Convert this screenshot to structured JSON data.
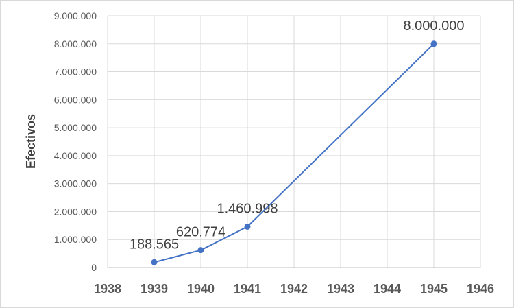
{
  "chart_data": {
    "type": "line",
    "title": "",
    "xlabel": "",
    "ylabel": "Efectivos",
    "xlim": [
      1938,
      1946
    ],
    "ylim": [
      0,
      9000000
    ],
    "x_ticks": [
      "1938",
      "1939",
      "1940",
      "1941",
      "1942",
      "1943",
      "1944",
      "1945",
      "1946"
    ],
    "y_ticks": [
      "0",
      "1.000.000",
      "2.000.000",
      "3.000.000",
      "4.000.000",
      "5.000.000",
      "6.000.000",
      "7.000.000",
      "8.000.000",
      "9.000.000"
    ],
    "grid": true,
    "legend": "none",
    "series": [
      {
        "color": "#4472c4",
        "points": [
          {
            "x": 1939,
            "y": 188565,
            "label": "188.565"
          },
          {
            "x": 1940,
            "y": 620774,
            "label": "620.774"
          },
          {
            "x": 1941,
            "y": 1460998,
            "label": "1.460.998"
          },
          {
            "x": 1945,
            "y": 8000000,
            "label": "8.000.000"
          }
        ]
      }
    ]
  }
}
